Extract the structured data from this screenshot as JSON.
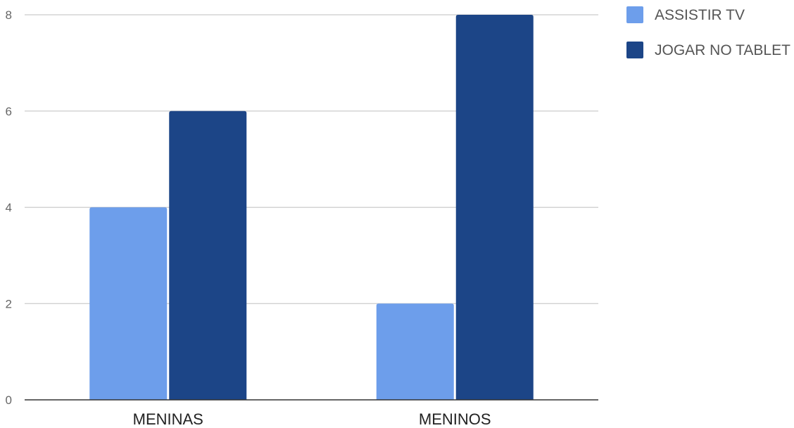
{
  "chart_data": {
    "type": "bar",
    "categories": [
      "MENINAS",
      "MENINOS"
    ],
    "series": [
      {
        "name": "ASSISTIR TV",
        "values": [
          4,
          2
        ],
        "color": "#6d9eeb"
      },
      {
        "name": "JOGAR NO TABLET",
        "values": [
          6,
          8
        ],
        "color": "#1c4587"
      }
    ],
    "ylim": [
      0,
      8
    ],
    "yticks": [
      0,
      2,
      4,
      6,
      8
    ],
    "grid": true,
    "legend": "top-right"
  }
}
